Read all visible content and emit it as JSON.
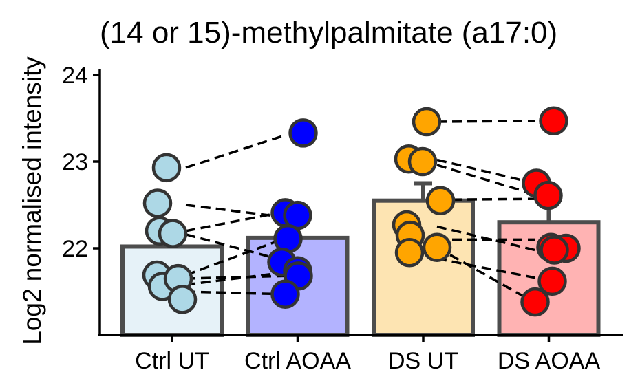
{
  "chart_data": {
    "type": "bar",
    "title": "(14 or 15)-methylpalmitate (a17:0)",
    "xlabel": "",
    "ylabel": "Log2 normalised intensity",
    "ylim": [
      21,
      24
    ],
    "yticks": [
      22,
      23,
      24
    ],
    "categories": [
      "Ctrl UT",
      "Ctrl AOAA",
      "DS UT",
      "DS AOAA"
    ],
    "bars": [
      {
        "category": "Ctrl UT",
        "mean": 22.02,
        "error_upper": null,
        "fill": "#e6f2f8",
        "point_color": "#add8e6"
      },
      {
        "category": "Ctrl AOAA",
        "mean": 22.12,
        "error_upper": null,
        "fill": "#b3b3ff",
        "point_color": "#0000ff"
      },
      {
        "category": "DS UT",
        "mean": 22.55,
        "error_upper": 22.75,
        "fill": "#fde4b2",
        "point_color": "#ffa500"
      },
      {
        "category": "DS AOAA",
        "mean": 22.3,
        "error_upper": 22.5,
        "fill": "#ffb3b3",
        "point_color": "#ff0000"
      }
    ],
    "points": {
      "Ctrl UT": [
        22.93,
        22.52,
        22.2,
        22.17,
        21.69,
        21.56,
        21.65,
        21.41
      ],
      "Ctrl AOAA": [
        23.33,
        22.41,
        22.38,
        22.11,
        21.84,
        21.74,
        21.68,
        21.47
      ],
      "DS UT": [
        23.46,
        23.03,
        23.0,
        22.55,
        22.27,
        22.15,
        21.95,
        22.01
      ],
      "DS AOAA": [
        23.47,
        22.75,
        22.61,
        22.0,
        22.01,
        21.98,
        21.62,
        21.38
      ]
    },
    "pairs": [
      {
        "from": "Ctrl UT",
        "to": "Ctrl AOAA",
        "y1": 22.93,
        "y2": 23.3
      },
      {
        "from": "Ctrl UT",
        "to": "Ctrl AOAA",
        "y1": 22.5,
        "y2": 22.36
      },
      {
        "from": "Ctrl UT",
        "to": "Ctrl AOAA",
        "y1": 22.2,
        "y2": 22.42
      },
      {
        "from": "Ctrl UT",
        "to": "Ctrl AOAA",
        "y1": 22.16,
        "y2": 21.86
      },
      {
        "from": "Ctrl UT",
        "to": "Ctrl AOAA",
        "y1": 21.69,
        "y2": 22.11
      },
      {
        "from": "Ctrl UT",
        "to": "Ctrl AOAA",
        "y1": 21.58,
        "y2": 21.72
      },
      {
        "from": "Ctrl UT",
        "to": "Ctrl AOAA",
        "y1": 21.65,
        "y2": 21.68
      },
      {
        "from": "Ctrl UT",
        "to": "Ctrl AOAA",
        "y1": 21.5,
        "y2": 21.47
      },
      {
        "from": "DS UT",
        "to": "DS AOAA",
        "y1": 23.46,
        "y2": 23.47
      },
      {
        "from": "DS UT",
        "to": "DS AOAA",
        "y1": 23.02,
        "y2": 22.75
      },
      {
        "from": "DS UT",
        "to": "DS AOAA",
        "y1": 22.96,
        "y2": 22.62
      },
      {
        "from": "DS UT",
        "to": "DS AOAA",
        "y1": 22.56,
        "y2": 22.57
      },
      {
        "from": "DS UT",
        "to": "DS AOAA",
        "y1": 22.25,
        "y2": 21.98
      },
      {
        "from": "DS UT",
        "to": "DS AOAA",
        "y1": 22.1,
        "y2": 22.1
      },
      {
        "from": "DS UT",
        "to": "DS AOAA",
        "y1": 22.01,
        "y2": 21.37
      },
      {
        "from": "DS UT",
        "to": "DS AOAA",
        "y1": 21.88,
        "y2": 21.66
      }
    ]
  }
}
